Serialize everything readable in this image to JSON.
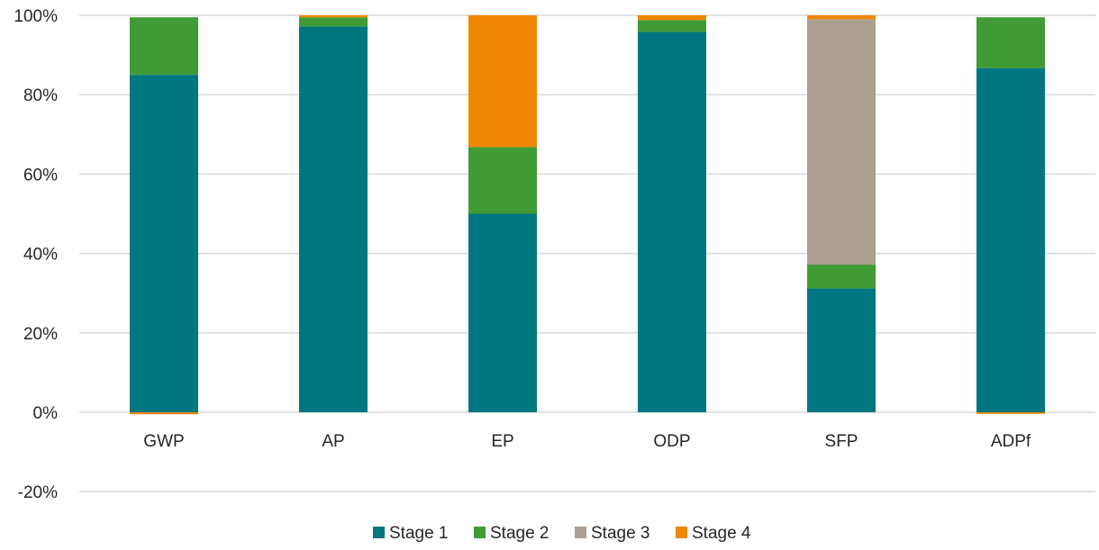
{
  "chart_data": {
    "type": "bar",
    "stacked": true,
    "categories": [
      "GWP",
      "AP",
      "EP",
      "ODP",
      "SFP",
      "ADPf"
    ],
    "series": [
      {
        "name": "Stage 1",
        "color": "#007681",
        "values": [
          85.0,
          97.2,
          50.0,
          95.8,
          31.2,
          86.7
        ]
      },
      {
        "name": "Stage 2",
        "color": "#3f9c35",
        "values": [
          14.5,
          2.3,
          16.8,
          3.0,
          6.0,
          12.8
        ]
      },
      {
        "name": "Stage 3",
        "color": "#ac9f92",
        "values": [
          0.0,
          0.0,
          0.0,
          0.0,
          61.8,
          0.0
        ]
      },
      {
        "name": "Stage 4",
        "color": "#ef8700",
        "values": [
          -0.5,
          0.5,
          33.2,
          1.2,
          1.0,
          -0.4
        ]
      }
    ],
    "ylim": [
      -20,
      100
    ],
    "yticks": [
      -20,
      0,
      20,
      40,
      60,
      80,
      100
    ],
    "ytick_labels": [
      "-20%",
      "0%",
      "20%",
      "40%",
      "60%",
      "80%",
      "100%"
    ],
    "grid": true,
    "legend_position": "bottom"
  }
}
